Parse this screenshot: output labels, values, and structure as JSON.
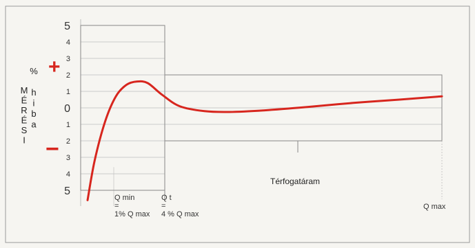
{
  "chart_data": {
    "type": "line",
    "title": "",
    "ylabel_left": "MÉRÉSI",
    "ylabel_right": "% hiba",
    "xlabel": "Térfogatáram",
    "y_ticks": [
      {
        "label": "5",
        "value": 5,
        "major": true
      },
      {
        "label": "4",
        "value": 4,
        "major": false
      },
      {
        "label": "3",
        "value": 3,
        "major": false
      },
      {
        "label": "2",
        "value": 2,
        "major": false
      },
      {
        "label": "1",
        "value": 1,
        "major": false
      },
      {
        "label": "0",
        "value": 0,
        "major": true
      },
      {
        "label": "1",
        "value": -1,
        "major": false
      },
      {
        "label": "2",
        "value": -2,
        "major": false
      },
      {
        "label": "3",
        "value": -3,
        "major": false
      },
      {
        "label": "4",
        "value": -4,
        "major": false
      },
      {
        "label": "5",
        "value": -5,
        "major": true
      }
    ],
    "plus_sign": "+",
    "minus_sign": "−",
    "x_markers": [
      {
        "id": "qmin",
        "lines": [
          "Q min",
          "=",
          "1% Q max"
        ]
      },
      {
        "id": "qt",
        "lines": [
          "Q t",
          "=",
          "4 % Q max"
        ]
      },
      {
        "id": "qmax",
        "lines": [
          "Q max"
        ]
      }
    ],
    "tolerance_bands": [
      {
        "from": "start",
        "to": "Q t",
        "range": [
          -5,
          5
        ]
      },
      {
        "from": "Q t",
        "to": "Q max",
        "range": [
          -2,
          2
        ]
      }
    ],
    "series": [
      {
        "color": "#d7261e",
        "points": [
          [
            0.0,
            -5.6
          ],
          [
            0.02,
            -3.2
          ],
          [
            0.05,
            -0.8
          ],
          [
            0.08,
            0.7
          ],
          [
            0.11,
            1.4
          ],
          [
            0.14,
            1.6
          ],
          [
            0.17,
            1.5
          ],
          [
            0.21,
            0.8
          ],
          [
            0.26,
            0.1
          ],
          [
            0.33,
            -0.2
          ],
          [
            0.4,
            -0.25
          ],
          [
            0.5,
            -0.15
          ],
          [
            0.62,
            0.05
          ],
          [
            0.75,
            0.3
          ],
          [
            0.88,
            0.5
          ],
          [
            1.0,
            0.7
          ]
        ]
      }
    ],
    "colors": {
      "curve": "#d7261e",
      "signs": "#d7261e",
      "frame": "#888888",
      "grid": "#bdbdbd"
    }
  }
}
